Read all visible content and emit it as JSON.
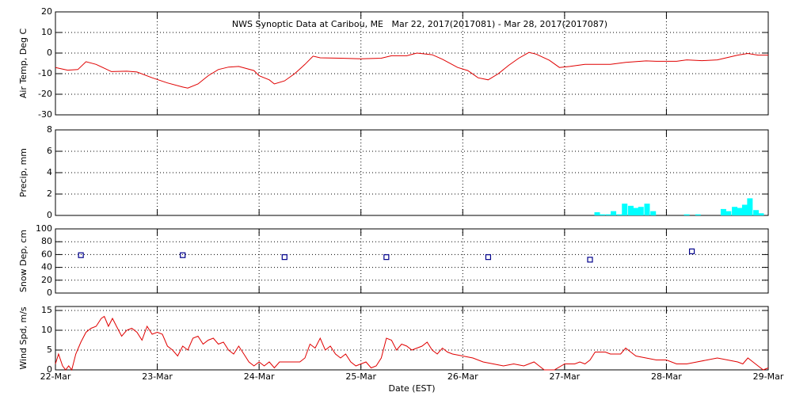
{
  "chart_data": [
    {
      "type": "line",
      "title": "NWS Synoptic Data at Caribou, ME   Mar 22, 2017(2017081) - Mar 28, 2017(2017087)",
      "ylabel": "Air Temp, Deg C",
      "color": "#e00000",
      "x": [
        0,
        0.12,
        0.22,
        0.3,
        0.4,
        0.55,
        0.7,
        0.8,
        0.95,
        1.1,
        1.25,
        1.3,
        1.4,
        1.5,
        1.6,
        1.7,
        1.8,
        1.95,
        2.0,
        2.1,
        2.15,
        2.25,
        2.35,
        2.45,
        2.53,
        2.6,
        2.8,
        3.0,
        3.2,
        3.3,
        3.45,
        3.55,
        3.7,
        3.8,
        3.95,
        4.05,
        4.15,
        4.25,
        4.35,
        4.45,
        4.55,
        4.65,
        4.72,
        4.85,
        4.95,
        5.05,
        5.2,
        5.45,
        5.6,
        5.8,
        5.9,
        6.0,
        6.1,
        6.2,
        6.35,
        6.5,
        6.7,
        6.8,
        6.9,
        7.0
      ],
      "values": [
        -7,
        -8.3,
        -8,
        -4.2,
        -5.5,
        -9,
        -8.8,
        -9.2,
        -12,
        -14.5,
        -16.5,
        -17,
        -15,
        -11,
        -8,
        -6.8,
        -6.5,
        -8.5,
        -11,
        -13,
        -15,
        -13.5,
        -10,
        -5.5,
        -1.5,
        -2.3,
        -2.5,
        -2.8,
        -2.5,
        -1.3,
        -1.3,
        0,
        -0.8,
        -3,
        -7,
        -8.5,
        -12,
        -13,
        -10,
        -6,
        -2.5,
        0.3,
        -0.5,
        -3.5,
        -7,
        -6.5,
        -5.5,
        -5.5,
        -4.5,
        -3.8,
        -4,
        -4,
        -4,
        -3.3,
        -3.7,
        -3.3,
        -1,
        -0.2,
        -1,
        -1
      ],
      "xlim": [
        0,
        7
      ],
      "xticks": [
        1,
        2,
        3,
        4,
        5,
        6
      ],
      "ylim": [
        -30,
        20
      ],
      "yticks": [
        -30,
        -20,
        -10,
        0,
        10,
        20
      ],
      "grid": true
    },
    {
      "type": "bar",
      "ylabel": "Precip, mm",
      "color": "#00ffff",
      "x": [
        5.32,
        5.37,
        5.43,
        5.48,
        5.54,
        5.59,
        5.65,
        5.7,
        5.75,
        5.81,
        5.87,
        6.2,
        6.31,
        6.56,
        6.61,
        6.67,
        6.72,
        6.77,
        6.82,
        6.88,
        6.93
      ],
      "values": [
        0.3,
        0.1,
        0.1,
        0.4,
        0.1,
        1.1,
        0.9,
        0.7,
        0.8,
        1.1,
        0.4,
        0.1,
        0.1,
        0.6,
        0.4,
        0.8,
        0.7,
        1.0,
        1.6,
        0.5,
        0.2
      ],
      "xlim": [
        0,
        7
      ],
      "xticks": [
        1,
        2,
        3,
        4,
        5,
        6
      ],
      "ylim": [
        0,
        8
      ],
      "yticks": [
        0,
        2,
        4,
        6,
        8
      ],
      "grid": true
    },
    {
      "type": "scatter",
      "ylabel": "Snow Dep, cm",
      "color": "#00008b",
      "marker": "square",
      "x": [
        0.25,
        1.25,
        2.25,
        3.25,
        4.25,
        5.25,
        6.25
      ],
      "values": [
        59,
        59,
        56,
        56,
        56,
        52,
        65
      ],
      "xlim": [
        0,
        7
      ],
      "xticks": [
        1,
        2,
        3,
        4,
        5,
        6
      ],
      "ylim": [
        0,
        100
      ],
      "yticks": [
        0,
        20,
        40,
        60,
        80,
        100
      ],
      "grid": true
    },
    {
      "type": "line",
      "ylabel": "Wind Spd, m/s",
      "xlabel": "Date (EST)",
      "color": "#e00000",
      "x": [
        0,
        0.03,
        0.07,
        0.1,
        0.13,
        0.16,
        0.2,
        0.25,
        0.3,
        0.35,
        0.4,
        0.45,
        0.48,
        0.52,
        0.56,
        0.6,
        0.65,
        0.7,
        0.75,
        0.8,
        0.85,
        0.9,
        0.95,
        1.0,
        1.05,
        1.1,
        1.15,
        1.2,
        1.25,
        1.3,
        1.35,
        1.4,
        1.45,
        1.5,
        1.55,
        1.6,
        1.65,
        1.7,
        1.75,
        1.8,
        1.85,
        1.9,
        1.95,
        2.0,
        2.05,
        2.1,
        2.15,
        2.2,
        2.3,
        2.4,
        2.45,
        2.5,
        2.55,
        2.6,
        2.65,
        2.7,
        2.75,
        2.8,
        2.85,
        2.9,
        2.95,
        3.05,
        3.1,
        3.15,
        3.2,
        3.25,
        3.3,
        3.35,
        3.4,
        3.45,
        3.5,
        3.55,
        3.6,
        3.65,
        3.7,
        3.75,
        3.8,
        3.85,
        3.9,
        4.0,
        4.1,
        4.2,
        4.3,
        4.4,
        4.5,
        4.6,
        4.7,
        4.75,
        4.8,
        4.9,
        5.0,
        5.1,
        5.15,
        5.2,
        5.25,
        5.3,
        5.4,
        5.45,
        5.55,
        5.6,
        5.65,
        5.7,
        5.8,
        5.9,
        6.0,
        6.1,
        6.2,
        6.3,
        6.4,
        6.5,
        6.6,
        6.7,
        6.75,
        6.8,
        6.85,
        6.9,
        6.95,
        7.0
      ],
      "values": [
        1.5,
        4,
        1,
        0,
        1,
        0,
        4,
        7,
        9.5,
        10.5,
        11,
        13,
        13.5,
        11,
        13,
        11,
        8.5,
        10,
        10.5,
        9.5,
        7.5,
        11,
        9,
        9.5,
        9,
        6,
        5,
        3.5,
        6,
        5,
        8,
        8.5,
        6.5,
        7.5,
        8,
        6.5,
        7,
        5,
        4,
        6,
        4,
        2,
        1,
        2,
        1,
        2,
        0.5,
        2,
        2,
        2,
        3,
        6.5,
        5.5,
        8,
        5,
        6,
        4,
        3,
        4,
        2,
        1,
        2,
        0.5,
        1,
        3,
        8,
        7.5,
        5,
        6.5,
        6,
        5,
        5.5,
        6,
        7,
        5,
        4,
        5.5,
        4.5,
        4,
        3.5,
        3,
        2,
        1.5,
        1,
        1.5,
        1,
        2,
        1,
        0,
        0,
        1.5,
        1.5,
        2,
        1.5,
        2.5,
        4.5,
        4.5,
        4,
        4,
        5.5,
        4.5,
        3.5,
        3,
        2.5,
        2.5,
        1.5,
        1.5,
        2,
        2.5,
        3,
        2.5,
        2,
        1.5,
        3,
        2,
        1,
        0,
        0.5
      ],
      "xlim": [
        0,
        7
      ],
      "xticks": [
        {
          "value": 0,
          "label": "22-Mar"
        },
        {
          "value": 1,
          "label": "23-Mar"
        },
        {
          "value": 2,
          "label": "24-Mar"
        },
        {
          "value": 3,
          "label": "25-Mar"
        },
        {
          "value": 4,
          "label": "26-Mar"
        },
        {
          "value": 5,
          "label": "27-Mar"
        },
        {
          "value": 6,
          "label": "28-Mar"
        },
        {
          "value": 7,
          "label": "29-Mar"
        }
      ],
      "ylim": [
        0,
        16
      ],
      "yticks": [
        0,
        5,
        10,
        15
      ],
      "grid": true
    }
  ]
}
